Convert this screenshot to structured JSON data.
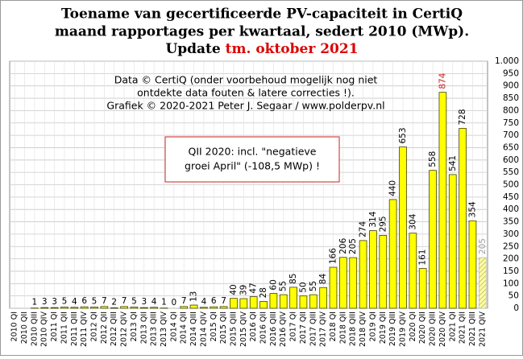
{
  "chart_data": {
    "type": "bar",
    "title": [
      "Toename van gecertificeerde PV-capaciteit in CertiQ",
      "maand rapportages per kwartaal, sedert 2010 (MWp)."
    ],
    "update_prefix": "Update",
    "update_highlight": "tm. oktober 2021",
    "annotations": [
      "Data © CertiQ (onder voorbehoud mogelijk  nog niet",
      "ontdekte data fouten & latere correcties !).",
      "Grafiek  © 2020-2021 Peter J. Segaar / www.polderpv.nl"
    ],
    "note_box": [
      "QII 2020: incl. \"negatieve",
      "groei April\"  (-108,5 MWp) !"
    ],
    "categories": [
      "2010 QI",
      "2010 QII",
      "2010 QIII",
      "2010 QIV",
      "2011 QI",
      "2011 QII",
      "2011 QIII",
      "2011 QIV",
      "2012 QI",
      "2012 QII",
      "2012 QIII",
      "2012 QIV",
      "2013 QI",
      "2013 QII",
      "2013 QIII",
      "2013 QIV",
      "2014 QI",
      "2014 QII",
      "2014 QIII",
      "2014 QIV",
      "2015 QI",
      "2015 QII",
      "2015 QIII",
      "2015 QIV",
      "2016 QI",
      "2016 QII",
      "2016 QIII",
      "2016 QIV",
      "2017 QI",
      "2017 QII",
      "2017 QIII",
      "2017 QIV",
      "2018 QI",
      "2018 QII",
      "2018 QIII",
      "2018 QIV",
      "2019 QI",
      "2019 QII",
      "2019 QIII",
      "2019 QIV",
      "2020 QI",
      "2020 QII",
      "2020 QIII",
      "2020 QIV",
      "2021 QI",
      "2021 QII",
      "2021 QIII",
      "2021 QIV"
    ],
    "values": [
      null,
      null,
      1,
      3,
      3,
      5,
      4,
      6,
      5,
      7,
      2,
      7,
      5,
      3,
      4,
      1,
      0,
      7,
      13,
      4,
      6,
      7,
      40,
      39,
      47,
      28,
      60,
      55,
      85,
      50,
      55,
      84,
      166,
      206,
      205,
      274,
      314,
      295,
      440,
      653,
      304,
      161,
      558,
      874,
      541,
      728,
      354,
      205
    ],
    "color": "#ffff00",
    "edge_color": "#404000",
    "peak_label_color": "#cc2222",
    "estimate_last": true,
    "estimate_label_color": "#a0a0a0",
    "ylim": [
      0,
      1000
    ],
    "yticks": [
      0,
      50,
      100,
      150,
      200,
      250,
      300,
      350,
      400,
      450,
      500,
      550,
      600,
      650,
      700,
      750,
      800,
      850,
      900,
      950,
      {
        "value": 1000,
        "label": "1.000"
      }
    ],
    "grid": true
  }
}
